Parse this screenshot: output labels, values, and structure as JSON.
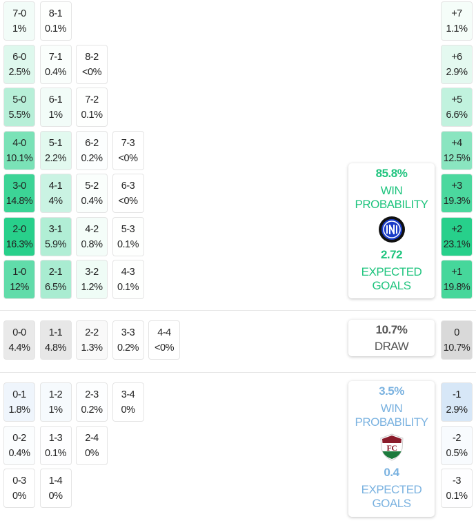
{
  "colors": {
    "home": "#1fc47e",
    "away": "#7ab2e0",
    "draw": "#555555"
  },
  "home_scores": [
    [
      {
        "s": "7-0",
        "p": "1%"
      },
      {
        "s": "8-1",
        "p": "0.1%"
      }
    ],
    [
      {
        "s": "6-0",
        "p": "2.5%"
      },
      {
        "s": "7-1",
        "p": "0.4%"
      },
      {
        "s": "8-2",
        "p": "<0%"
      }
    ],
    [
      {
        "s": "5-0",
        "p": "5.5%"
      },
      {
        "s": "6-1",
        "p": "1%"
      },
      {
        "s": "7-2",
        "p": "0.1%"
      }
    ],
    [
      {
        "s": "4-0",
        "p": "10.1%"
      },
      {
        "s": "5-1",
        "p": "2.2%"
      },
      {
        "s": "6-2",
        "p": "0.2%"
      },
      {
        "s": "7-3",
        "p": "<0%"
      }
    ],
    [
      {
        "s": "3-0",
        "p": "14.8%"
      },
      {
        "s": "4-1",
        "p": "4%"
      },
      {
        "s": "5-2",
        "p": "0.4%"
      },
      {
        "s": "6-3",
        "p": "<0%"
      }
    ],
    [
      {
        "s": "2-0",
        "p": "16.3%"
      },
      {
        "s": "3-1",
        "p": "5.9%"
      },
      {
        "s": "4-2",
        "p": "0.8%"
      },
      {
        "s": "5-3",
        "p": "0.1%"
      }
    ],
    [
      {
        "s": "1-0",
        "p": "12%"
      },
      {
        "s": "2-1",
        "p": "6.5%"
      },
      {
        "s": "3-2",
        "p": "1.2%"
      },
      {
        "s": "4-3",
        "p": "0.1%"
      }
    ]
  ],
  "home_margins": [
    {
      "s": "+7",
      "p": "1.1%"
    },
    {
      "s": "+6",
      "p": "2.9%"
    },
    {
      "s": "+5",
      "p": "6.6%"
    },
    {
      "s": "+4",
      "p": "12.5%"
    },
    {
      "s": "+3",
      "p": "19.3%"
    },
    {
      "s": "+2",
      "p": "23.1%"
    },
    {
      "s": "+1",
      "p": "19.8%"
    }
  ],
  "draw_scores": [
    [
      {
        "s": "0-0",
        "p": "4.4%"
      },
      {
        "s": "1-1",
        "p": "4.8%"
      },
      {
        "s": "2-2",
        "p": "1.3%"
      },
      {
        "s": "3-3",
        "p": "0.2%"
      },
      {
        "s": "4-4",
        "p": "<0%"
      }
    ]
  ],
  "draw_margins": [
    {
      "s": "0",
      "p": "10.7%"
    }
  ],
  "away_scores": [
    [
      {
        "s": "0-1",
        "p": "1.8%"
      },
      {
        "s": "1-2",
        "p": "1%"
      },
      {
        "s": "2-3",
        "p": "0.2%"
      },
      {
        "s": "3-4",
        "p": "0%"
      }
    ],
    [
      {
        "s": "0-2",
        "p": "0.4%"
      },
      {
        "s": "1-3",
        "p": "0.1%"
      },
      {
        "s": "2-4",
        "p": "0%"
      }
    ],
    [
      {
        "s": "0-3",
        "p": "0%"
      },
      {
        "s": "1-4",
        "p": "0%"
      }
    ]
  ],
  "away_margins": [
    {
      "s": "-1",
      "p": "2.9%"
    },
    {
      "s": "-2",
      "p": "0.5%"
    },
    {
      "s": "-3",
      "p": "0.1%"
    }
  ],
  "home_card": {
    "win_pct": "85.8%",
    "win_label_1": "WIN",
    "win_label_2": "PROBABILITY",
    "xg": "2.72",
    "xg_label_1": "EXPECTED",
    "xg_label_2": "GOALS",
    "logo": "inter-crest-icon"
  },
  "draw_card": {
    "pct": "10.7%",
    "label": "DRAW"
  },
  "away_card": {
    "win_pct": "3.5%",
    "win_label_1": "WIN",
    "win_label_2": "PROBABILITY",
    "xg": "0.4",
    "xg_label_1": "EXPECTED",
    "xg_label_2": "GOALS",
    "logo": "fluminense-crest-icon"
  }
}
